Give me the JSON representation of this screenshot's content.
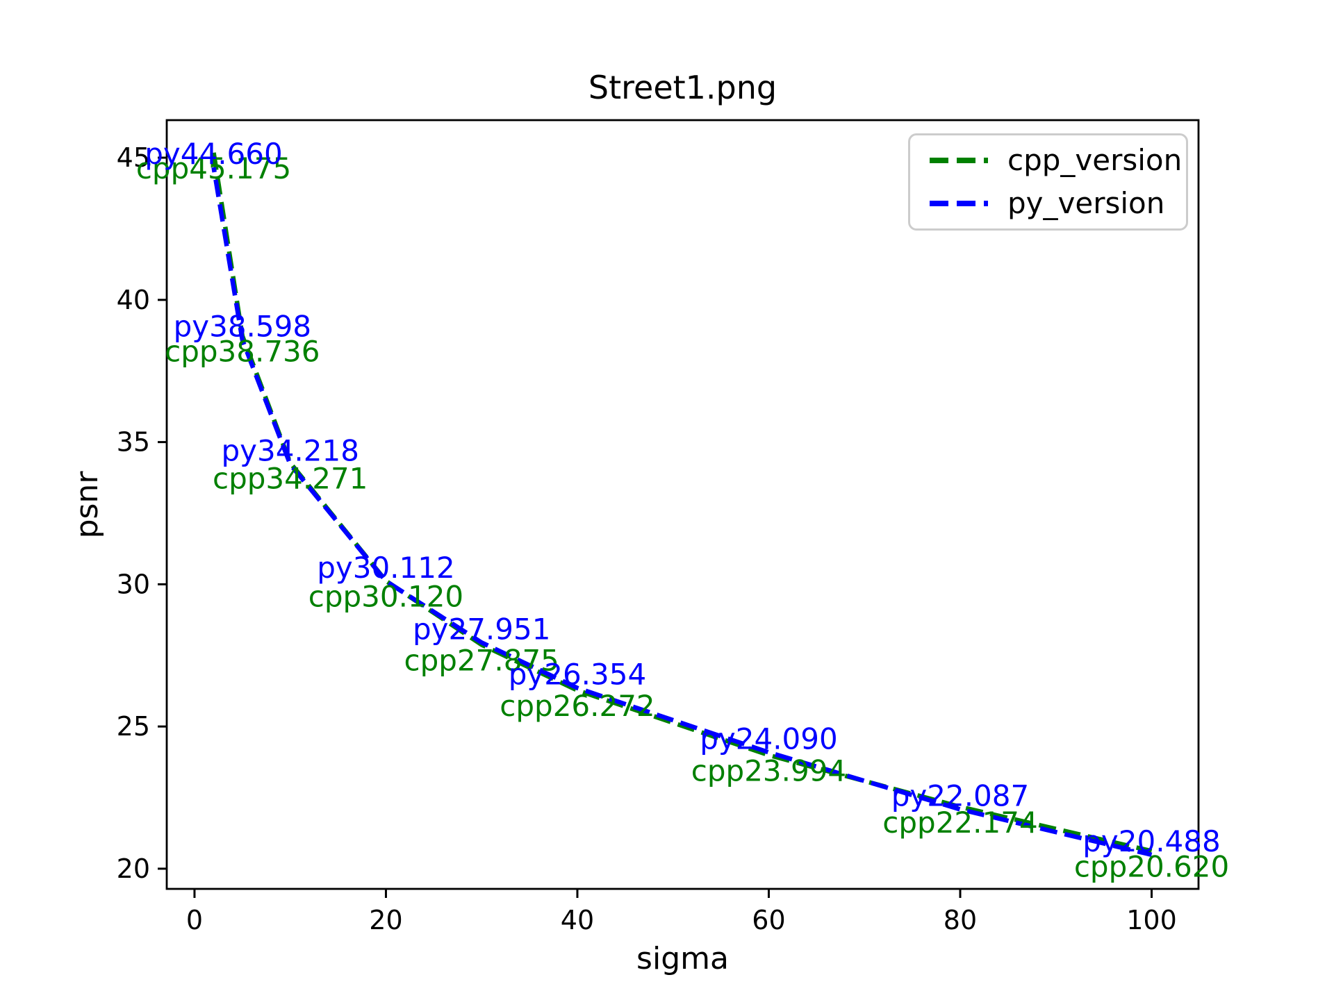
{
  "chart_data": {
    "type": "line",
    "title": "Street1.png",
    "xlabel": "sigma",
    "ylabel": "psnr",
    "x": [
      2,
      5,
      10,
      20,
      30,
      40,
      60,
      80,
      100
    ],
    "xticks": [
      0,
      20,
      40,
      60,
      80,
      100
    ],
    "yticks": [
      20,
      25,
      30,
      35,
      40,
      45
    ],
    "xlim": [
      -2.9,
      104.9
    ],
    "ylim": [
      19.29,
      46.32
    ],
    "grid": false,
    "line_style": "dashed",
    "legend_position": "upper right",
    "legend_border_color": "#cccccc",
    "axis_color": "#000000",
    "series": [
      {
        "name": "cpp_version",
        "color": "#008000",
        "label_side": "below",
        "values": [
          45.175,
          38.736,
          34.271,
          30.12,
          27.875,
          26.272,
          23.994,
          22.174,
          20.62
        ],
        "point_labels": [
          "cpp45.175",
          "cpp38.736",
          "cpp34.271",
          "cpp30.120",
          "cpp27.875",
          "cpp26.272",
          "cpp23.994",
          "cpp22.174",
          "cpp20.620"
        ]
      },
      {
        "name": "py_version",
        "color": "#0000ff",
        "label_side": "above",
        "values": [
          44.66,
          38.598,
          34.218,
          30.112,
          27.951,
          26.354,
          24.09,
          22.087,
          20.488
        ],
        "point_labels": [
          "py44.660",
          "py38.598",
          "py34.218",
          "py30.112",
          "py27.951",
          "py26.354",
          "py24.090",
          "py22.087",
          "py20.488"
        ]
      }
    ]
  }
}
